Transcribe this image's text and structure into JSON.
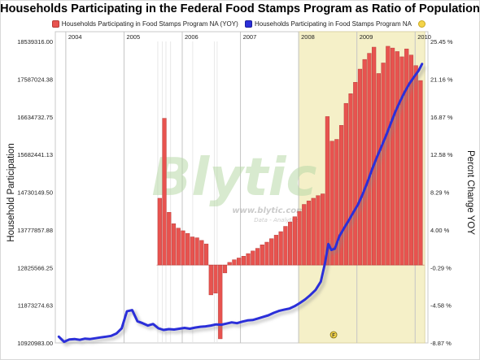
{
  "chart_data": {
    "type": "bar",
    "title": "Households Participating in the Federal Food Stamps Program as Ratio of Population",
    "ylabel_left": "Household Participation",
    "ylabel_right": "Percnt Change YOY",
    "left_ticks": [
      "18539316.00",
      "17587024.38",
      "16634732.75",
      "15682441.13",
      "14730149.50",
      "13777857.88",
      "12825566.25",
      "11873274.63",
      "10920983.00"
    ],
    "right_ticks": [
      "25.45 %",
      "21.16 %",
      "16.87 %",
      "12.58 %",
      "8.29 %",
      "4.00 %",
      "-0.29 %",
      "-4.58 %",
      "-8.87 %"
    ],
    "left_range": [
      10920983.0,
      18539316.0
    ],
    "right_range": [
      -8.87,
      25.45
    ],
    "years": [
      "2004",
      "2005",
      "2006",
      "2007",
      "2008",
      "2009",
      "2010"
    ],
    "highlight_period": [
      "2008-01",
      "2010-03"
    ],
    "highlight_color": "#f5f0c8",
    "watermark": "Blytic",
    "watermark_sub": "www.blytic.com",
    "watermark_sub2": "Data - Analytics",
    "series": [
      {
        "name": "Households Participating in Food Stamps Program NA (YOY)",
        "axis": "right",
        "color": "#e8534f",
        "bars": [
          {
            "t": 2005.62,
            "v": 7.6
          },
          {
            "t": 2005.7,
            "v": 16.7
          },
          {
            "t": 2005.78,
            "v": 6.0
          },
          {
            "t": 2005.86,
            "v": 4.7
          },
          {
            "t": 2005.94,
            "v": 4.2
          },
          {
            "t": 2006.02,
            "v": 3.9
          },
          {
            "t": 2006.1,
            "v": 3.6
          },
          {
            "t": 2006.18,
            "v": 3.2
          },
          {
            "t": 2006.26,
            "v": 3.1
          },
          {
            "t": 2006.34,
            "v": 2.8
          },
          {
            "t": 2006.42,
            "v": 2.4
          },
          {
            "t": 2006.5,
            "v": -3.4
          },
          {
            "t": 2006.58,
            "v": -3.2
          },
          {
            "t": 2006.66,
            "v": -8.4
          },
          {
            "t": 2006.74,
            "v": -0.9
          },
          {
            "t": 2006.82,
            "v": 0.3
          },
          {
            "t": 2006.9,
            "v": 0.6
          },
          {
            "t": 2006.98,
            "v": 0.8
          },
          {
            "t": 2007.06,
            "v": 1.0
          },
          {
            "t": 2007.14,
            "v": 1.3
          },
          {
            "t": 2007.22,
            "v": 1.6
          },
          {
            "t": 2007.3,
            "v": 1.9
          },
          {
            "t": 2007.38,
            "v": 2.3
          },
          {
            "t": 2007.46,
            "v": 2.6
          },
          {
            "t": 2007.54,
            "v": 3.0
          },
          {
            "t": 2007.62,
            "v": 3.4
          },
          {
            "t": 2007.7,
            "v": 3.8
          },
          {
            "t": 2007.78,
            "v": 4.4
          },
          {
            "t": 2007.86,
            "v": 4.9
          },
          {
            "t": 2007.94,
            "v": 5.5
          },
          {
            "t": 2008.02,
            "v": 6.1
          },
          {
            "t": 2008.1,
            "v": 6.9
          },
          {
            "t": 2008.18,
            "v": 7.3
          },
          {
            "t": 2008.26,
            "v": 7.6
          },
          {
            "t": 2008.34,
            "v": 7.9
          },
          {
            "t": 2008.42,
            "v": 8.1
          },
          {
            "t": 2008.5,
            "v": 16.9
          },
          {
            "t": 2008.58,
            "v": 14.1
          },
          {
            "t": 2008.66,
            "v": 14.3
          },
          {
            "t": 2008.74,
            "v": 15.9
          },
          {
            "t": 2008.82,
            "v": 18.4
          },
          {
            "t": 2008.9,
            "v": 19.5
          },
          {
            "t": 2008.98,
            "v": 20.8
          },
          {
            "t": 2009.06,
            "v": 22.3
          },
          {
            "t": 2009.14,
            "v": 23.4
          },
          {
            "t": 2009.22,
            "v": 24.1
          },
          {
            "t": 2009.3,
            "v": 24.8
          },
          {
            "t": 2009.38,
            "v": 21.8
          },
          {
            "t": 2009.46,
            "v": 23.0
          },
          {
            "t": 2009.54,
            "v": 24.9
          },
          {
            "t": 2009.62,
            "v": 24.7
          },
          {
            "t": 2009.7,
            "v": 24.3
          },
          {
            "t": 2009.78,
            "v": 23.7
          },
          {
            "t": 2009.86,
            "v": 24.6
          },
          {
            "t": 2009.94,
            "v": 23.9
          },
          {
            "t": 2010.02,
            "v": 22.7
          },
          {
            "t": 2010.1,
            "v": 21.0
          }
        ]
      },
      {
        "name": "Households Participating in Food Stamps Program NA",
        "axis": "left",
        "color": "#2b2fd9",
        "points": [
          [
            2003.88,
            11080000
          ],
          [
            2003.97,
            10950000
          ],
          [
            2004.06,
            11010000
          ],
          [
            2004.15,
            11020000
          ],
          [
            2004.24,
            11000000
          ],
          [
            2004.33,
            11030000
          ],
          [
            2004.42,
            11020000
          ],
          [
            2004.51,
            11040000
          ],
          [
            2004.6,
            11060000
          ],
          [
            2004.69,
            11080000
          ],
          [
            2004.78,
            11100000
          ],
          [
            2004.87,
            11160000
          ],
          [
            2004.96,
            11290000
          ],
          [
            2005.05,
            11720000
          ],
          [
            2005.14,
            11750000
          ],
          [
            2005.23,
            11470000
          ],
          [
            2005.32,
            11420000
          ],
          [
            2005.41,
            11360000
          ],
          [
            2005.5,
            11400000
          ],
          [
            2005.59,
            11290000
          ],
          [
            2005.68,
            11250000
          ],
          [
            2005.77,
            11270000
          ],
          [
            2005.86,
            11260000
          ],
          [
            2005.95,
            11280000
          ],
          [
            2006.04,
            11300000
          ],
          [
            2006.13,
            11280000
          ],
          [
            2006.22,
            11310000
          ],
          [
            2006.31,
            11330000
          ],
          [
            2006.4,
            11340000
          ],
          [
            2006.49,
            11360000
          ],
          [
            2006.58,
            11390000
          ],
          [
            2006.67,
            11380000
          ],
          [
            2006.76,
            11410000
          ],
          [
            2006.85,
            11440000
          ],
          [
            2006.94,
            11420000
          ],
          [
            2007.03,
            11460000
          ],
          [
            2007.12,
            11490000
          ],
          [
            2007.21,
            11500000
          ],
          [
            2007.3,
            11540000
          ],
          [
            2007.39,
            11580000
          ],
          [
            2007.48,
            11620000
          ],
          [
            2007.57,
            11680000
          ],
          [
            2007.66,
            11730000
          ],
          [
            2007.75,
            11760000
          ],
          [
            2007.84,
            11790000
          ],
          [
            2007.93,
            11850000
          ],
          [
            2008.02,
            11930000
          ],
          [
            2008.11,
            12020000
          ],
          [
            2008.2,
            12130000
          ],
          [
            2008.29,
            12260000
          ],
          [
            2008.38,
            12470000
          ],
          [
            2008.45,
            12920000
          ],
          [
            2008.51,
            13420000
          ],
          [
            2008.56,
            13270000
          ],
          [
            2008.62,
            13300000
          ],
          [
            2008.7,
            13620000
          ],
          [
            2008.78,
            13820000
          ],
          [
            2008.86,
            14020000
          ],
          [
            2008.94,
            14220000
          ],
          [
            2009.02,
            14420000
          ],
          [
            2009.1,
            14680000
          ],
          [
            2009.18,
            14980000
          ],
          [
            2009.26,
            15300000
          ],
          [
            2009.34,
            15600000
          ],
          [
            2009.42,
            15880000
          ],
          [
            2009.5,
            16160000
          ],
          [
            2009.58,
            16460000
          ],
          [
            2009.66,
            16760000
          ],
          [
            2009.74,
            17020000
          ],
          [
            2009.82,
            17260000
          ],
          [
            2009.9,
            17470000
          ],
          [
            2009.98,
            17640000
          ],
          [
            2010.06,
            17800000
          ],
          [
            2010.12,
            17970000
          ]
        ]
      }
    ],
    "flag_marker": {
      "t": 2008.6,
      "label": "F"
    }
  }
}
